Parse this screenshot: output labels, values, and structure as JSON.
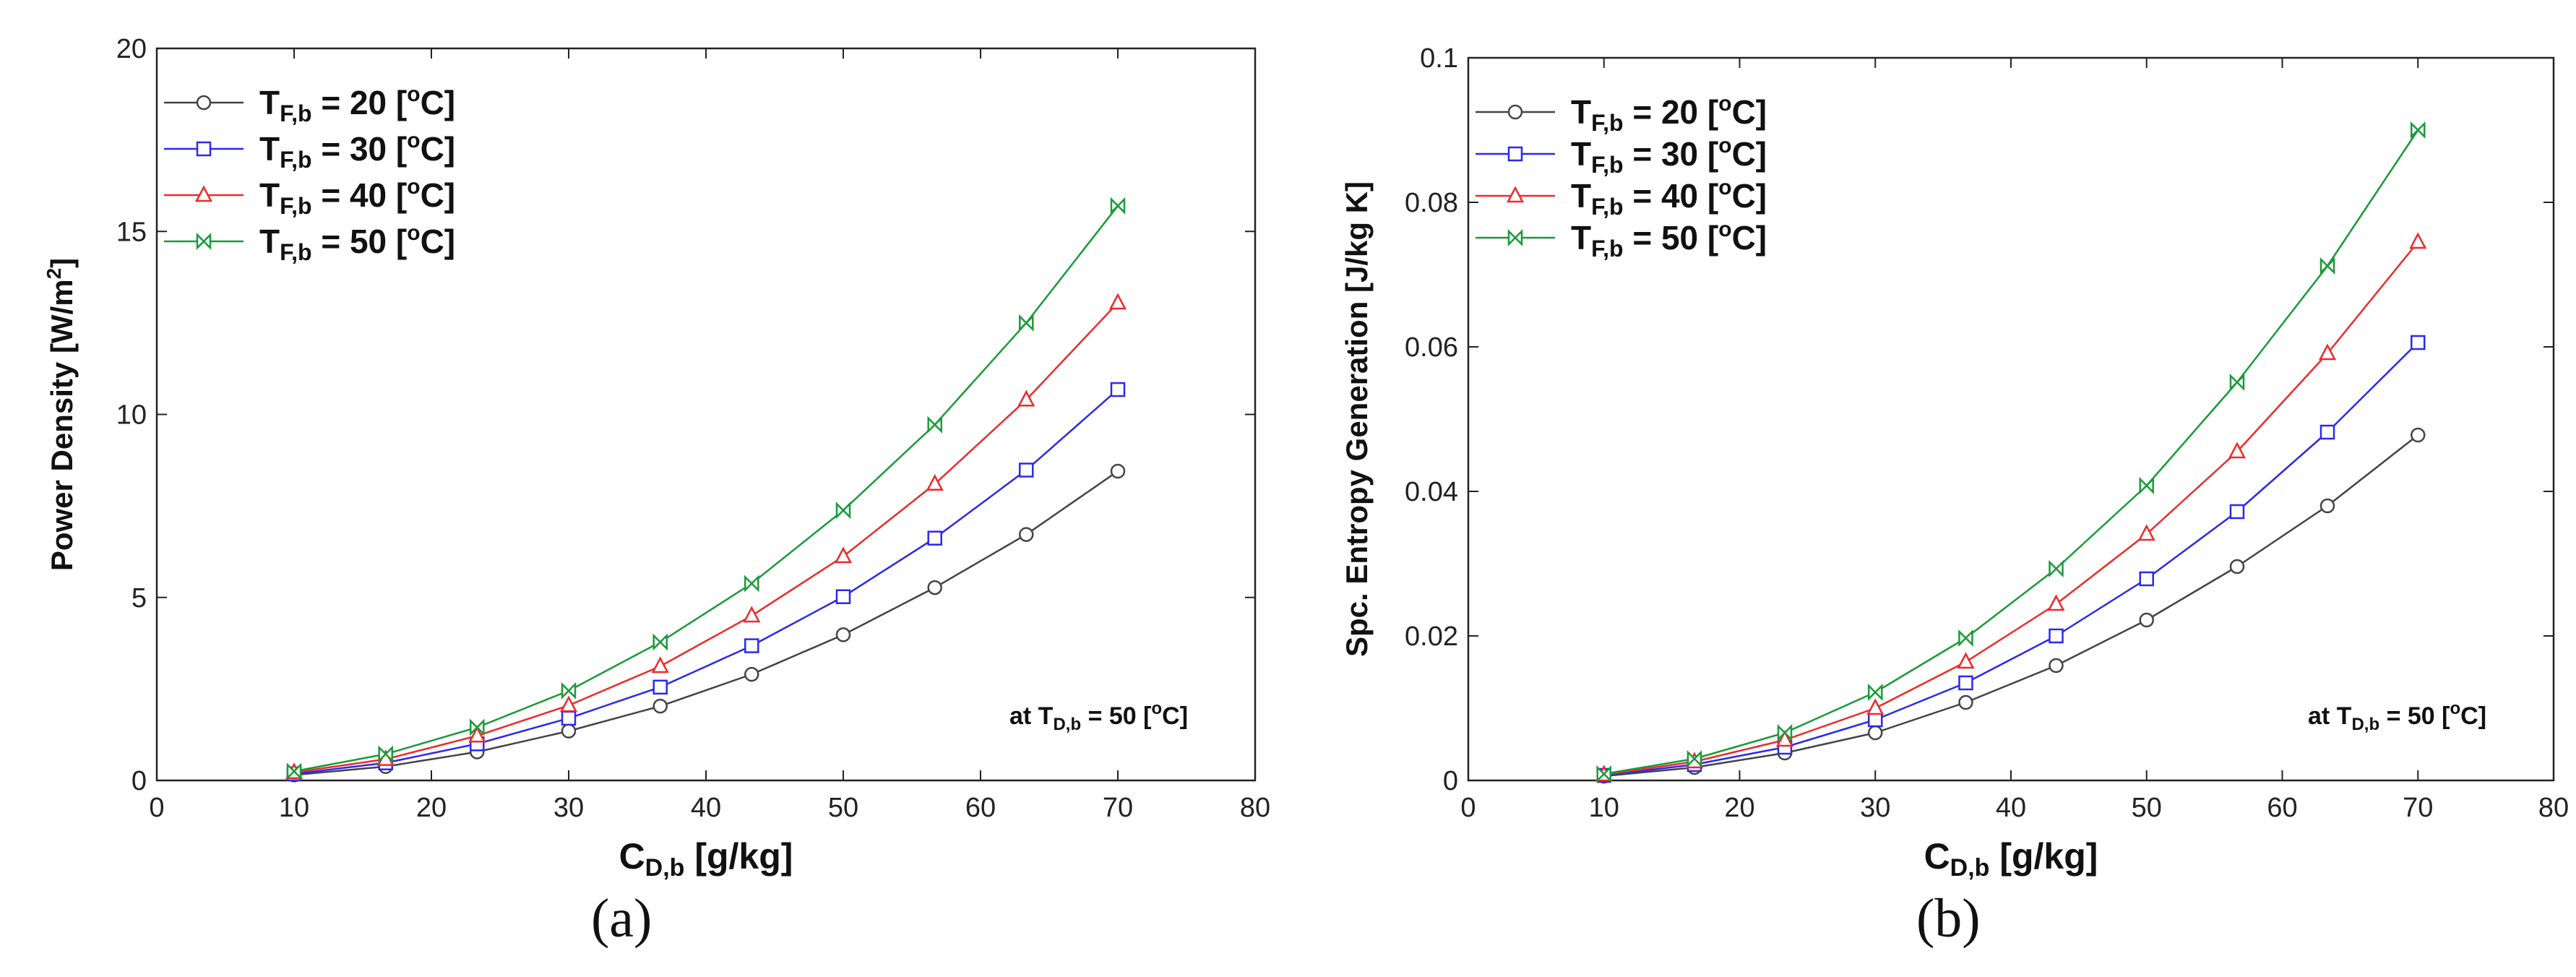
{
  "captions": {
    "a": "(a)",
    "b": "(b)"
  },
  "chart_data": [
    {
      "id": "a",
      "type": "line",
      "title": "",
      "xlabel": {
        "main": "C",
        "sub": "D,b",
        "unit": "[g/kg]"
      },
      "ylabel": {
        "main": "Power Density [W/m",
        "sup": "2",
        "end": "]"
      },
      "xlim": [
        0,
        80
      ],
      "ylim": [
        0,
        20
      ],
      "xticks": [
        "0",
        "10",
        "20",
        "30",
        "40",
        "50",
        "60",
        "70",
        "80"
      ],
      "yticks": [
        "0",
        "5",
        "10",
        "15",
        "20"
      ],
      "x": [
        10,
        16.67,
        23.33,
        30,
        36.67,
        43.33,
        50,
        56.67,
        63.33,
        70
      ],
      "series": [
        {
          "name": "T F,b = 20 [oC]",
          "label": {
            "main": "T",
            "sub": "F,b",
            "eq": " = 20  [",
            "sup": "o",
            "unit": "C]"
          },
          "color": "#444444",
          "marker": "circle",
          "values": [
            0.15,
            0.38,
            0.78,
            1.35,
            2.03,
            2.9,
            3.98,
            5.27,
            6.72,
            8.45
          ]
        },
        {
          "name": "T F,b = 30 [oC]",
          "label": {
            "main": "T",
            "sub": "F,b",
            "eq": " = 30  [",
            "sup": "o",
            "unit": "C]"
          },
          "color": "#2a2aee",
          "marker": "square",
          "values": [
            0.18,
            0.48,
            1.0,
            1.7,
            2.55,
            3.68,
            5.02,
            6.62,
            8.48,
            10.68
          ]
        },
        {
          "name": "T F,b = 40 [oC]",
          "label": {
            "main": "T",
            "sub": "F,b",
            "eq": " = 40  [",
            "sup": "o",
            "unit": "C]"
          },
          "color": "#ee2a2a",
          "marker": "triangle",
          "values": [
            0.22,
            0.58,
            1.22,
            2.05,
            3.12,
            4.5,
            6.12,
            8.1,
            10.4,
            13.05
          ]
        },
        {
          "name": "T F,b = 50 [oC]",
          "label": {
            "main": "T",
            "sub": "F,b",
            "eq": " = 50  [",
            "sup": "o",
            "unit": "C]"
          },
          "color": "#1a9a3a",
          "marker": "bowtie",
          "values": [
            0.25,
            0.72,
            1.45,
            2.45,
            3.78,
            5.38,
            7.38,
            9.72,
            12.5,
            15.7
          ]
        }
      ],
      "annotation": {
        "prefix": "at T",
        "sub": "D,b",
        "eq": " = 50 [",
        "sup": "o",
        "unit": "C]"
      },
      "legend_position": "top-left"
    },
    {
      "id": "b",
      "type": "line",
      "title": "",
      "xlabel": {
        "main": "C",
        "sub": "D,b",
        "unit": "[g/kg]"
      },
      "ylabel": {
        "main": "Spc. Entropy Generation [J/kg K]",
        "sup": "",
        "end": ""
      },
      "xlim": [
        0,
        80
      ],
      "ylim": [
        0,
        0.1
      ],
      "xticks": [
        "0",
        "10",
        "20",
        "30",
        "40",
        "50",
        "60",
        "70",
        "80"
      ],
      "yticks": [
        "0",
        "0.02",
        "0.04",
        "0.06",
        "0.08",
        "0.1"
      ],
      "x": [
        10,
        16.67,
        23.33,
        30,
        36.67,
        43.33,
        50,
        56.67,
        63.33,
        70
      ],
      "series": [
        {
          "name": "T F,b = 20 [oC]",
          "label": {
            "main": "T",
            "sub": "F,b",
            "eq": " = 20  [",
            "sup": "o",
            "unit": "C]"
          },
          "color": "#444444",
          "marker": "circle",
          "values": [
            0.0006,
            0.0018,
            0.0038,
            0.0066,
            0.0108,
            0.0159,
            0.0222,
            0.0296,
            0.038,
            0.0478
          ]
        },
        {
          "name": "T F,b = 30 [oC]",
          "label": {
            "main": "T",
            "sub": "F,b",
            "eq": " = 30  [",
            "sup": "o",
            "unit": "C]"
          },
          "color": "#2a2aee",
          "marker": "square",
          "values": [
            0.0007,
            0.0022,
            0.0046,
            0.0084,
            0.0135,
            0.02,
            0.0279,
            0.0372,
            0.0482,
            0.0606
          ]
        },
        {
          "name": "T F,b = 40 [oC]",
          "label": {
            "main": "T",
            "sub": "F,b",
            "eq": " = 40  [",
            "sup": "o",
            "unit": "C]"
          },
          "color": "#ee2a2a",
          "marker": "triangle",
          "values": [
            0.0008,
            0.0026,
            0.0056,
            0.01,
            0.0164,
            0.0244,
            0.0341,
            0.0455,
            0.0591,
            0.0745
          ]
        },
        {
          "name": "T F,b = 50 [oC]",
          "label": {
            "main": "T",
            "sub": "F,b",
            "eq": " = 50  [",
            "sup": "o",
            "unit": "C]"
          },
          "color": "#1a9a3a",
          "marker": "bowtie",
          "values": [
            0.0009,
            0.003,
            0.0066,
            0.0122,
            0.0197,
            0.0293,
            0.0408,
            0.0551,
            0.0712,
            0.09
          ]
        }
      ],
      "annotation": {
        "prefix": "at T",
        "sub": "D,b",
        "eq": " = 50 [",
        "sup": "o",
        "unit": "C]"
      },
      "legend_position": "top-left"
    }
  ]
}
